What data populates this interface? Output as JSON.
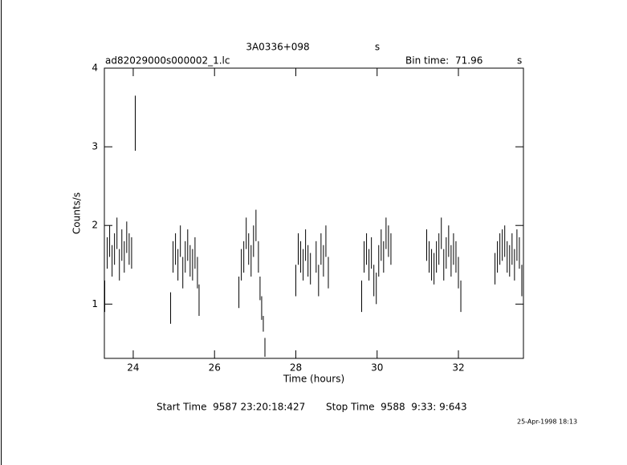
{
  "chart_data": {
    "type": "errorbar",
    "title": "3A0336+098",
    "title_unit": "s",
    "file": "ad82029000s000002_1.lc",
    "bin_label": "Bin time:",
    "bin_value": 71.96,
    "bin_unit": "s",
    "xlabel": "Time (hours)",
    "ylabel": "Counts/s",
    "start_time": "Start Time  9587 23:20:18:427",
    "stop_time": "Stop Time  9588  9:33: 9:643",
    "timestamp": "25-Apr-1998 18:13",
    "color": "#000000",
    "xlim": [
      23.29,
      33.6
    ],
    "ylim": [
      0.31,
      4
    ],
    "xticks": [
      24,
      26,
      28,
      30,
      32
    ],
    "yticks": [
      1,
      2,
      3,
      4
    ],
    "x": [
      23.3,
      23.36,
      23.42,
      23.48,
      23.54,
      23.6,
      23.66,
      23.72,
      23.78,
      23.84,
      23.9,
      23.96,
      24.05,
      24.92,
      24.98,
      25.04,
      25.1,
      25.16,
      25.22,
      25.28,
      25.34,
      25.4,
      25.46,
      25.52,
      25.58,
      25.62,
      26.6,
      26.66,
      26.72,
      26.78,
      26.84,
      26.9,
      26.96,
      27.02,
      27.08,
      27.12,
      27.16,
      27.2,
      27.24,
      28.0,
      28.06,
      28.12,
      28.18,
      28.24,
      28.3,
      28.36,
      28.5,
      28.56,
      28.62,
      28.68,
      28.74,
      28.8,
      29.62,
      29.68,
      29.74,
      29.8,
      29.86,
      29.92,
      29.98,
      30.04,
      30.1,
      30.16,
      30.22,
      30.28,
      30.34,
      31.22,
      31.28,
      31.34,
      31.4,
      31.46,
      31.52,
      31.58,
      31.64,
      31.7,
      31.76,
      31.82,
      31.88,
      31.94,
      32.0,
      32.06,
      32.9,
      32.96,
      33.02,
      33.08,
      33.14,
      33.2,
      33.26,
      33.32,
      33.38,
      33.44,
      33.5,
      33.56
    ],
    "values": [
      1.1,
      1.65,
      1.8,
      1.55,
      1.7,
      1.9,
      1.5,
      1.75,
      1.6,
      1.85,
      1.7,
      1.65,
      3.3,
      0.95,
      1.6,
      1.7,
      1.5,
      1.8,
      1.4,
      1.6,
      1.75,
      1.55,
      1.5,
      1.65,
      1.4,
      1.05,
      1.15,
      1.5,
      1.6,
      1.9,
      1.7,
      1.55,
      1.8,
      2.0,
      1.6,
      1.2,
      0.95,
      0.75,
      0.45,
      1.3,
      1.7,
      1.6,
      1.5,
      1.75,
      1.55,
      1.45,
      1.6,
      1.3,
      1.7,
      1.55,
      1.8,
      1.4,
      1.1,
      1.6,
      1.7,
      1.5,
      1.65,
      1.3,
      1.2,
      1.55,
      1.75,
      1.6,
      1.9,
      1.8,
      1.7,
      1.75,
      1.6,
      1.5,
      1.45,
      1.6,
      1.7,
      1.9,
      1.5,
      1.65,
      1.8,
      1.55,
      1.7,
      1.6,
      1.4,
      1.1,
      1.45,
      1.6,
      1.7,
      1.75,
      1.8,
      1.6,
      1.55,
      1.7,
      1.5,
      1.75,
      1.65,
      1.3
    ],
    "errors": [
      0.2,
      0.2,
      0.2,
      0.2,
      0.2,
      0.2,
      0.2,
      0.2,
      0.2,
      0.2,
      0.2,
      0.2,
      0.35,
      0.2,
      0.2,
      0.2,
      0.2,
      0.2,
      0.2,
      0.2,
      0.2,
      0.2,
      0.2,
      0.2,
      0.2,
      0.2,
      0.2,
      0.2,
      0.2,
      0.2,
      0.2,
      0.2,
      0.2,
      0.2,
      0.2,
      0.15,
      0.15,
      0.1,
      0.12,
      0.2,
      0.2,
      0.2,
      0.2,
      0.2,
      0.2,
      0.2,
      0.2,
      0.2,
      0.2,
      0.2,
      0.2,
      0.2,
      0.2,
      0.2,
      0.2,
      0.2,
      0.2,
      0.2,
      0.2,
      0.2,
      0.2,
      0.2,
      0.2,
      0.2,
      0.2,
      0.2,
      0.2,
      0.2,
      0.2,
      0.2,
      0.2,
      0.2,
      0.2,
      0.2,
      0.2,
      0.2,
      0.2,
      0.2,
      0.2,
      0.2,
      0.2,
      0.2,
      0.2,
      0.2,
      0.2,
      0.2,
      0.2,
      0.2,
      0.2,
      0.2,
      0.2,
      0.2
    ]
  }
}
